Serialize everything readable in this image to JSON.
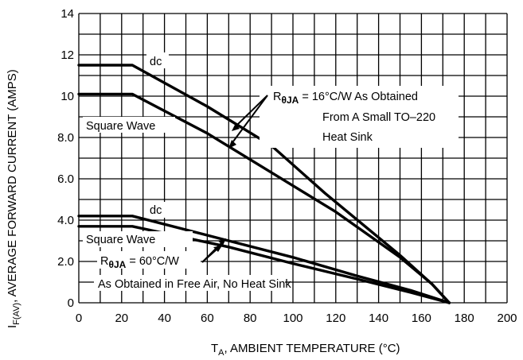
{
  "chart_data": {
    "type": "line",
    "xlabel": "T_A, AMBIENT TEMPERATURE (°C)",
    "xlabel_main": "T",
    "xlabel_sub": "A",
    "xlabel_rest": ", AMBIENT TEMPERATURE (°C)",
    "ylabel": "I_F(AV), AVERAGE FORWARD CURRENT (AMPS)",
    "ylabel_main": "I",
    "ylabel_sub": "F(AV)",
    "ylabel_rest": ", AVERAGE FORWARD CURRENT (AMPS)",
    "xlim": [
      0,
      200
    ],
    "ylim": [
      0,
      14
    ],
    "x_ticks": [
      "0",
      "20",
      "40",
      "60",
      "80",
      "100",
      "120",
      "140",
      "160",
      "180",
      "200"
    ],
    "y_ticks": [
      "0",
      "2.0",
      "4.0",
      "6.0",
      "8.0",
      "10",
      "12",
      "14"
    ],
    "grid": true,
    "series": [
      {
        "name": "dc",
        "x": [
          0,
          25,
          60,
          90,
          115,
          150,
          165,
          173
        ],
        "y": [
          11.5,
          11.5,
          9.5,
          7.6,
          5.3,
          2.3,
          0.9,
          0
        ]
      },
      {
        "name": "Square Wave",
        "x": [
          0,
          25,
          60,
          90,
          120,
          150,
          165,
          173
        ],
        "y": [
          10.1,
          10.1,
          8.2,
          6.3,
          4.4,
          2.2,
          0.9,
          0
        ]
      },
      {
        "name": "dc",
        "x": [
          0,
          25,
          70,
          100,
          130,
          155,
          173
        ],
        "y": [
          4.2,
          4.2,
          3.0,
          2.2,
          1.3,
          0.6,
          0
        ]
      },
      {
        "name": "Square Wave",
        "x": [
          0,
          25,
          70,
          100,
          130,
          155,
          173
        ],
        "y": [
          3.7,
          3.7,
          2.7,
          1.9,
          1.15,
          0.5,
          0
        ]
      }
    ],
    "annotations": {
      "dc_upper": "dc",
      "square_upper": "Square Wave",
      "dc_lower": "dc",
      "square_lower": "Square Wave",
      "r_upper_prefix": "R",
      "r_upper_sub": "θJA",
      "r_upper_rest": " = 16°C/W As Obtained",
      "r_upper_line2": "From A Small TO–220",
      "r_upper_line3": "Heat Sink",
      "r_lower_prefix": "R",
      "r_lower_sub": "θJA",
      "r_lower_rest": " = 60°C/W",
      "r_lower_line2": "As Obtained in Free Air, No Heat Sink"
    }
  }
}
